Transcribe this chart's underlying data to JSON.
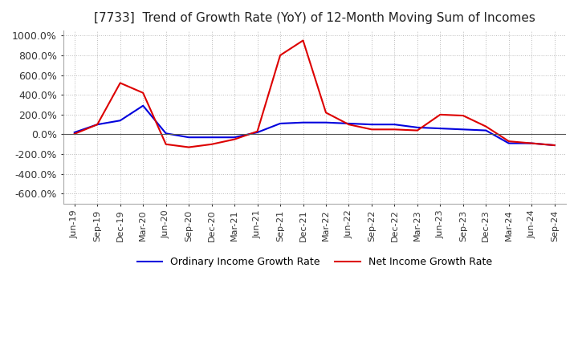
{
  "title": "[7733]  Trend of Growth Rate (YoY) of 12-Month Moving Sum of Incomes",
  "title_fontsize": 11,
  "ylim": [
    -700,
    1050
  ],
  "yticks": [
    -600,
    -400,
    -200,
    0,
    200,
    400,
    600,
    800,
    1000
  ],
  "background_color": "#ffffff",
  "plot_bg_color": "#ffffff",
  "grid_color": "#bbbbbb",
  "legend_labels": [
    "Ordinary Income Growth Rate",
    "Net Income Growth Rate"
  ],
  "legend_colors": [
    "#0000dd",
    "#dd0000"
  ],
  "xtick_labels": [
    "Jun-19",
    "Sep-19",
    "Dec-19",
    "Mar-20",
    "Jun-20",
    "Sep-20",
    "Dec-20",
    "Mar-21",
    "Jun-21",
    "Sep-21",
    "Dec-21",
    "Mar-22",
    "Jun-22",
    "Sep-22",
    "Dec-22",
    "Mar-23",
    "Jun-23",
    "Sep-23",
    "Dec-23",
    "Mar-24",
    "Jun-24",
    "Sep-24"
  ],
  "ordinary_income_growth": [
    20,
    100,
    140,
    290,
    10,
    -30,
    -30,
    -30,
    20,
    110,
    120,
    120,
    110,
    100,
    100,
    70,
    60,
    50,
    40,
    -90,
    -90,
    -110
  ],
  "net_income_growth": [
    5,
    100,
    520,
    420,
    -100,
    -130,
    -100,
    -50,
    30,
    800,
    950,
    220,
    100,
    50,
    50,
    40,
    200,
    190,
    80,
    -70,
    -90,
    -110
  ]
}
